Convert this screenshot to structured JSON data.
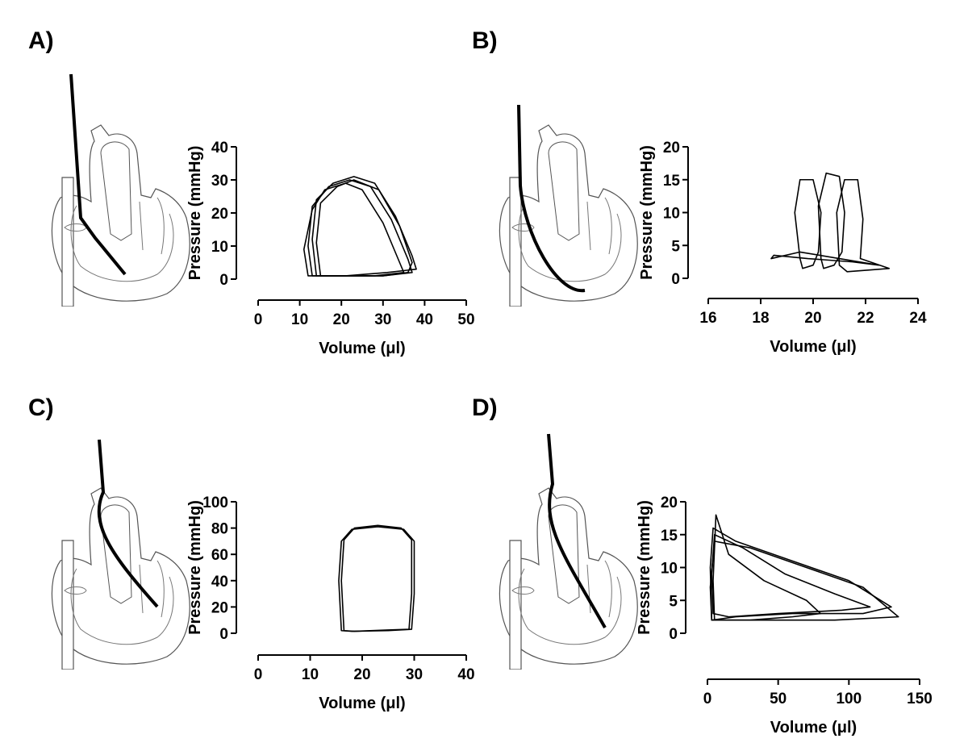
{
  "chart_data": [
    {
      "type": "loop",
      "title": "A)",
      "xlabel": "Volume (μl)",
      "ylabel": "Pressure (mmHg)",
      "xlim": [
        0,
        50
      ],
      "xticks": [
        0,
        10,
        20,
        30,
        40,
        50
      ],
      "ylim": [
        0,
        40
      ],
      "yticks": [
        0,
        10,
        20,
        30,
        40
      ],
      "series": [
        {
          "color": "#000000",
          "x": [
            13,
            12,
            13,
            17,
            22,
            27,
            32,
            36,
            37,
            30,
            20
          ],
          "values": [
            1,
            10,
            22,
            28,
            30,
            28,
            18,
            6,
            2,
            1,
            1
          ]
        },
        {
          "color": "#000000",
          "x": [
            14,
            13,
            14,
            18,
            23,
            28,
            33,
            37,
            38,
            31,
            21
          ],
          "values": [
            1,
            12,
            24,
            29,
            31,
            29,
            19,
            7,
            3,
            2,
            1
          ]
        },
        {
          "color": "#000000",
          "x": [
            12,
            11,
            13,
            16,
            21,
            25,
            30,
            34,
            35,
            28,
            19
          ],
          "values": [
            1,
            9,
            21,
            27,
            29,
            27,
            17,
            5,
            2,
            1,
            1
          ]
        },
        {
          "color": "#000000",
          "x": [
            15,
            14,
            15,
            19,
            23,
            29,
            34,
            37,
            36,
            30,
            22
          ],
          "values": [
            1,
            11,
            23,
            28,
            30,
            27,
            16,
            5,
            2,
            1,
            1
          ]
        }
      ]
    },
    {
      "type": "loop",
      "title": "B)",
      "xlabel": "Volume (μl)",
      "ylabel": "Pressure (mmHg)",
      "xlim": [
        16,
        24
      ],
      "xticks": [
        16,
        18,
        20,
        22,
        24
      ],
      "ylim": [
        0,
        20
      ],
      "yticks": [
        0,
        5,
        10,
        15,
        20
      ],
      "series": [
        {
          "color": "#000000",
          "x": [
            19.5,
            19.3,
            19.5,
            20,
            20.3,
            20.2,
            20,
            19.6
          ],
          "values": [
            3,
            10,
            15,
            15,
            10,
            4,
            2,
            1.5
          ]
        },
        {
          "color": "#000000",
          "x": [
            20.3,
            20.2,
            20.5,
            21,
            21.2,
            21.1,
            20.8,
            20.4
          ],
          "values": [
            3,
            11,
            16,
            15.5,
            10,
            4,
            2,
            1.5
          ]
        },
        {
          "color": "#000000",
          "x": [
            21,
            20.9,
            21.2,
            21.7,
            21.9,
            21.8,
            22.9,
            21.3
          ],
          "values": [
            2,
            10,
            15,
            15,
            9,
            3,
            1.5,
            1
          ]
        },
        {
          "color": "#000000",
          "x": [
            18.5,
            19.8,
            21.5,
            22.5,
            21,
            19.5,
            18.4
          ],
          "values": [
            3.5,
            3,
            2.5,
            2,
            3,
            4,
            3
          ]
        }
      ]
    },
    {
      "type": "loop",
      "title": "C)",
      "xlabel": "Volume (μl)",
      "ylabel": "Pressure (mmHg)",
      "xlim": [
        0,
        40
      ],
      "xticks": [
        0,
        10,
        20,
        30,
        40
      ],
      "ylim": [
        0,
        100
      ],
      "yticks": [
        0,
        20,
        40,
        60,
        80,
        100
      ],
      "series": [
        {
          "color": "#000000",
          "x": [
            16,
            15.5,
            16,
            18,
            23,
            28,
            30,
            30,
            29.5,
            25,
            18
          ],
          "values": [
            2,
            40,
            70,
            79,
            81,
            79,
            70,
            30,
            3,
            2,
            1.5
          ]
        },
        {
          "color": "#000000",
          "x": [
            16.5,
            16,
            16.5,
            18.5,
            23,
            27.5,
            29.5,
            29.5,
            29,
            25,
            18.5
          ],
          "values": [
            2,
            40,
            71,
            80,
            82,
            80,
            71,
            30,
            3,
            2.5,
            1.5
          ]
        }
      ]
    },
    {
      "type": "loop",
      "title": "D)",
      "xlabel": "Volume (μl)",
      "ylabel": "Pressure (mmHg)",
      "xlim": [
        0,
        150
      ],
      "xticks": [
        0,
        50,
        100,
        150
      ],
      "ylim": [
        0,
        20
      ],
      "yticks": [
        0,
        5,
        10,
        15,
        20
      ],
      "series": [
        {
          "color": "#000000",
          "x": [
            3,
            2,
            4,
            20,
            60,
            100,
            130,
            110,
            60,
            20
          ],
          "values": [
            2,
            10,
            16,
            14,
            11,
            8,
            4,
            3,
            3,
            2.5
          ]
        },
        {
          "color": "#000000",
          "x": [
            4,
            3,
            5,
            25,
            55,
            90,
            115,
            95,
            50,
            15
          ],
          "values": [
            3,
            9,
            15,
            13,
            9,
            6,
            4,
            3.5,
            3,
            2.5
          ]
        },
        {
          "color": "#000000",
          "x": [
            5,
            4,
            6,
            15,
            40,
            70,
            80,
            60,
            30,
            10
          ],
          "values": [
            2,
            8,
            18,
            12,
            8,
            5,
            3,
            2.5,
            2,
            2
          ]
        },
        {
          "color": "#000000",
          "x": [
            3,
            2,
            5,
            30,
            70,
            110,
            135,
            90,
            40,
            10
          ],
          "values": [
            2,
            7,
            14,
            13,
            10,
            7,
            2.5,
            2,
            2,
            2
          ]
        }
      ]
    }
  ]
}
